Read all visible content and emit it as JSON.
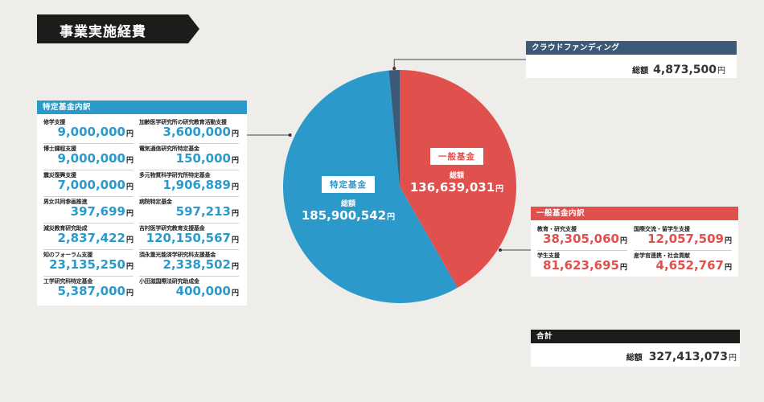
{
  "title": "事業実施経費",
  "currency": "円",
  "total_label": "総額",
  "crowdfunding": {
    "header": "クラウドファンディング",
    "total_label": "総額",
    "total": "4,873,500"
  },
  "special": {
    "header": "特定基金内訳",
    "items": [
      {
        "name": "修学支援",
        "value": "9,000,000"
      },
      {
        "name": "加齢医学研究所の研究教育活動支援",
        "value": "3,600,000"
      },
      {
        "name": "博士課程支援",
        "value": "9,000,000"
      },
      {
        "name": "電気通信研究所特定基金",
        "value": "150,000"
      },
      {
        "name": "震災復興支援",
        "value": "7,000,000"
      },
      {
        "name": "多元物質科学研究所特定基金",
        "value": "1,906,889"
      },
      {
        "name": "男女共同参画推進",
        "value": "397,699"
      },
      {
        "name": "病院特定基金",
        "value": "597,213"
      },
      {
        "name": "減災教育研究助成",
        "value": "2,837,422"
      },
      {
        "name": "吉村医学研究教育支援基金",
        "value": "120,150,567"
      },
      {
        "name": "知のフォーラム支援",
        "value": "23,135,250"
      },
      {
        "name": "須永重光能済学研究科支援基金",
        "value": "2,338,502"
      },
      {
        "name": "工学研究科特定基金",
        "value": "5,387,000"
      },
      {
        "name": "小田滋国際法研究助成金",
        "value": "400,000"
      }
    ]
  },
  "general": {
    "header": "一般基金内訳",
    "items": [
      {
        "name": "教育・研究支援",
        "value": "38,305,060"
      },
      {
        "name": "国際交流・留学生支援",
        "value": "12,057,509"
      },
      {
        "name": "学生支援",
        "value": "81,623,695"
      },
      {
        "name": "産学官連携・社会貢献",
        "value": "4,652,767"
      }
    ]
  },
  "total": {
    "header": "合計",
    "label": "総額",
    "value": "327,413,073"
  },
  "colors": {
    "special": "#2b9acb",
    "general": "#e0504d",
    "crowdfunding": "#3c5a78",
    "dark": "#1e1b1b"
  },
  "chart_data": {
    "type": "pie",
    "slices": [
      {
        "name": "一般基金",
        "label": "総額",
        "display": "136,639,031",
        "value": 136639031
      },
      {
        "name": "特定基金",
        "label": "総額",
        "display": "185,900,542",
        "value": 185900542
      },
      {
        "name": "クラウドファンディング",
        "value": 4873500
      }
    ]
  }
}
